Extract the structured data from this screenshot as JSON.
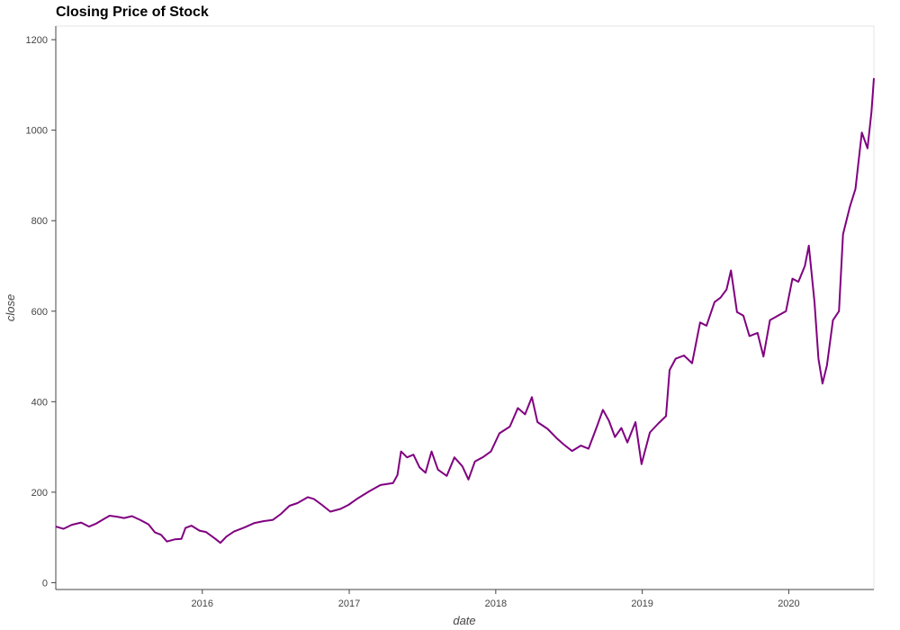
{
  "chart_data": {
    "type": "line",
    "title": "Closing Price of Stock",
    "xlabel": "date",
    "ylabel": "close",
    "xlim": [
      "2015-01-01",
      "2020-07-31"
    ],
    "ylim": [
      -15,
      1230
    ],
    "x_ticks": [
      "2016",
      "2017",
      "2018",
      "2019",
      "2020"
    ],
    "x_tick_dates": [
      "2016-01-01",
      "2017-01-01",
      "2018-01-01",
      "2019-01-01",
      "2020-01-01"
    ],
    "y_ticks": [
      0,
      200,
      400,
      600,
      800,
      1000,
      1200
    ],
    "grid": false,
    "legend": false,
    "colors": {
      "line": "#800080",
      "frame": "#e5e5e5",
      "axis": "#444444"
    },
    "series": [
      {
        "points": [
          [
            "2015-01-01",
            124
          ],
          [
            "2015-01-20",
            119
          ],
          [
            "2015-02-10",
            128
          ],
          [
            "2015-03-05",
            133
          ],
          [
            "2015-03-25",
            124
          ],
          [
            "2015-04-10",
            130
          ],
          [
            "2015-05-01",
            141
          ],
          [
            "2015-05-15",
            148
          ],
          [
            "2015-06-01",
            146
          ],
          [
            "2015-06-20",
            143
          ],
          [
            "2015-07-10",
            147
          ],
          [
            "2015-08-01",
            138
          ],
          [
            "2015-08-20",
            129
          ],
          [
            "2015-09-05",
            111
          ],
          [
            "2015-09-20",
            106
          ],
          [
            "2015-10-05",
            91
          ],
          [
            "2015-10-25",
            96
          ],
          [
            "2015-11-10",
            97
          ],
          [
            "2015-11-20",
            121
          ],
          [
            "2015-12-05",
            126
          ],
          [
            "2015-12-25",
            115
          ],
          [
            "2016-01-10",
            112
          ],
          [
            "2016-02-01",
            98
          ],
          [
            "2016-02-15",
            88
          ],
          [
            "2016-03-01",
            102
          ],
          [
            "2016-03-20",
            113
          ],
          [
            "2016-04-15",
            122
          ],
          [
            "2016-05-10",
            132
          ],
          [
            "2016-06-01",
            136
          ],
          [
            "2016-06-25",
            139
          ],
          [
            "2016-07-15",
            152
          ],
          [
            "2016-08-05",
            170
          ],
          [
            "2016-08-25",
            176
          ],
          [
            "2016-09-20",
            189
          ],
          [
            "2016-10-05",
            185
          ],
          [
            "2016-10-25",
            172
          ],
          [
            "2016-11-15",
            157
          ],
          [
            "2016-12-10",
            163
          ],
          [
            "2016-12-30",
            172
          ],
          [
            "2017-01-20",
            185
          ],
          [
            "2017-02-20",
            202
          ],
          [
            "2017-03-20",
            216
          ],
          [
            "2017-04-20",
            220
          ],
          [
            "2017-05-01",
            238
          ],
          [
            "2017-05-10",
            290
          ],
          [
            "2017-05-25",
            277
          ],
          [
            "2017-06-10",
            283
          ],
          [
            "2017-06-25",
            255
          ],
          [
            "2017-07-10",
            243
          ],
          [
            "2017-07-25",
            290
          ],
          [
            "2017-08-10",
            250
          ],
          [
            "2017-09-01",
            236
          ],
          [
            "2017-09-20",
            277
          ],
          [
            "2017-10-10",
            257
          ],
          [
            "2017-10-25",
            228
          ],
          [
            "2017-11-10",
            268
          ],
          [
            "2017-12-01",
            278
          ],
          [
            "2017-12-20",
            290
          ],
          [
            "2018-01-10",
            330
          ],
          [
            "2018-02-05",
            345
          ],
          [
            "2018-02-25",
            386
          ],
          [
            "2018-03-15",
            372
          ],
          [
            "2018-04-01",
            410
          ],
          [
            "2018-04-15",
            355
          ],
          [
            "2018-05-10",
            340
          ],
          [
            "2018-06-01",
            320
          ],
          [
            "2018-06-20",
            305
          ],
          [
            "2018-07-10",
            291
          ],
          [
            "2018-08-01",
            303
          ],
          [
            "2018-08-20",
            296
          ],
          [
            "2018-09-10",
            345
          ],
          [
            "2018-09-25",
            382
          ],
          [
            "2018-10-10",
            358
          ],
          [
            "2018-10-25",
            322
          ],
          [
            "2018-11-10",
            342
          ],
          [
            "2018-11-25",
            310
          ],
          [
            "2018-12-15",
            355
          ],
          [
            "2018-12-30",
            262
          ],
          [
            "2019-01-20",
            332
          ],
          [
            "2019-02-10",
            352
          ],
          [
            "2019-03-01",
            368
          ],
          [
            "2019-03-10",
            470
          ],
          [
            "2019-03-25",
            495
          ],
          [
            "2019-04-15",
            502
          ],
          [
            "2019-05-05",
            485
          ],
          [
            "2019-05-25",
            575
          ],
          [
            "2019-06-10",
            568
          ],
          [
            "2019-06-30",
            620
          ],
          [
            "2019-07-15",
            630
          ],
          [
            "2019-07-30",
            648
          ],
          [
            "2019-08-10",
            690
          ],
          [
            "2019-08-25",
            598
          ],
          [
            "2019-09-10",
            590
          ],
          [
            "2019-09-25",
            545
          ],
          [
            "2019-10-15",
            552
          ],
          [
            "2019-10-30",
            500
          ],
          [
            "2019-11-15",
            580
          ],
          [
            "2019-12-05",
            590
          ],
          [
            "2019-12-25",
            600
          ],
          [
            "2020-01-10",
            672
          ],
          [
            "2020-01-25",
            665
          ],
          [
            "2020-02-10",
            700
          ],
          [
            "2020-02-20",
            745
          ],
          [
            "2020-03-05",
            620
          ],
          [
            "2020-03-15",
            495
          ],
          [
            "2020-03-25",
            440
          ],
          [
            "2020-04-05",
            480
          ],
          [
            "2020-04-20",
            580
          ],
          [
            "2020-05-05",
            600
          ],
          [
            "2020-05-15",
            770
          ],
          [
            "2020-06-01",
            830
          ],
          [
            "2020-06-15",
            870
          ],
          [
            "2020-07-01",
            995
          ],
          [
            "2020-07-15",
            960
          ],
          [
            "2020-07-25",
            1040
          ],
          [
            "2020-07-31",
            1115
          ]
        ]
      }
    ]
  }
}
